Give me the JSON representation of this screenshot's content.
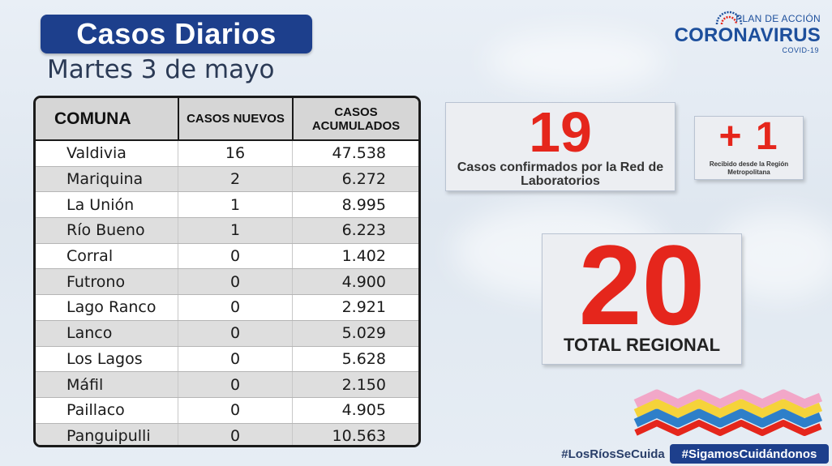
{
  "header": {
    "title": "Casos Diarios",
    "subtitle": "Martes 3 de mayo"
  },
  "logo": {
    "plan": "PLAN DE ACCIÓN",
    "main": "CORONAVIRUS",
    "sub": "COVID-19"
  },
  "table": {
    "headers": [
      "COMUNA",
      "CASOS NUEVOS",
      "CASOS ACUMULADOS"
    ],
    "rows": [
      {
        "comuna": "Valdivia",
        "nuevos": "16",
        "acumulados": "47.538"
      },
      {
        "comuna": "Mariquina",
        "nuevos": "2",
        "acumulados": "6.272"
      },
      {
        "comuna": "La Unión",
        "nuevos": "1",
        "acumulados": "8.995"
      },
      {
        "comuna": "Río Bueno",
        "nuevos": "1",
        "acumulados": "6.223"
      },
      {
        "comuna": "Corral",
        "nuevos": "0",
        "acumulados": "1.402"
      },
      {
        "comuna": "Futrono",
        "nuevos": "0",
        "acumulados": "4.900"
      },
      {
        "comuna": "Lago Ranco",
        "nuevos": "0",
        "acumulados": "2.921"
      },
      {
        "comuna": "Lanco",
        "nuevos": "0",
        "acumulados": "5.029"
      },
      {
        "comuna": "Los Lagos",
        "nuevos": "0",
        "acumulados": "5.628"
      },
      {
        "comuna": "Máfil",
        "nuevos": "0",
        "acumulados": "2.150"
      },
      {
        "comuna": "Paillaco",
        "nuevos": "0",
        "acumulados": "4.905"
      },
      {
        "comuna": "Panguipulli",
        "nuevos": "0",
        "acumulados": "10.563"
      }
    ]
  },
  "stats": {
    "confirmed_value": "19",
    "confirmed_caption": "Casos confirmados  por la Red de Laboratorios",
    "metro_value": "+ 1",
    "metro_caption": "Recibido desde la Región Metropolitana",
    "total_value": "20",
    "total_caption": "TOTAL REGIONAL"
  },
  "hashtags": [
    "#LosRíosSeCuida",
    "#SigamosCuidándonos"
  ],
  "colors": {
    "title_bg": "#1d3f8c",
    "accent_red": "#e5261c",
    "logo_blue": "#1d4f9c"
  }
}
